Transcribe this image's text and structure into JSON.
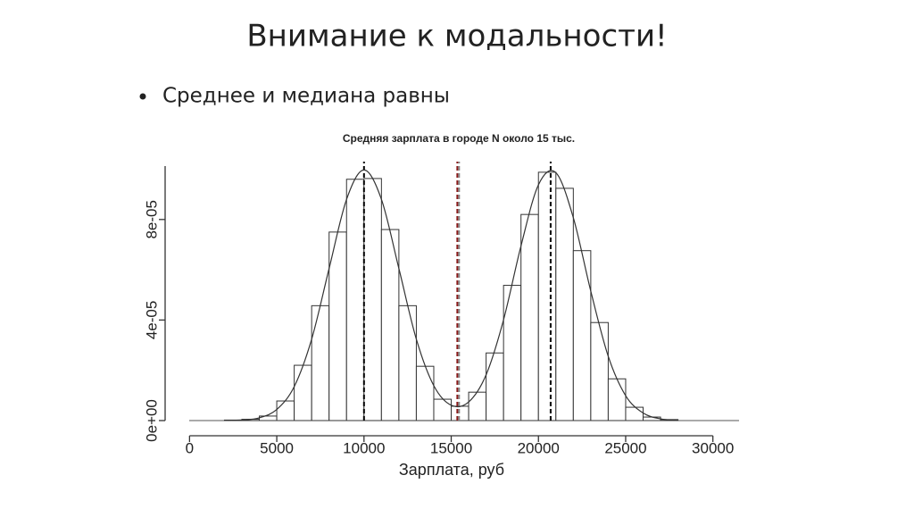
{
  "slide": {
    "title": "Внимание к модальности!",
    "bullets": [
      "Среднее и медиана равны"
    ]
  },
  "chart_data": {
    "type": "histogram",
    "title": "Средняя зарплата в городе N около 15 тыс.",
    "x_label": "Зарплата, руб",
    "bins": [
      2000,
      3000,
      4000,
      5000,
      6000,
      7000,
      8000,
      9000,
      10000,
      11000,
      12000,
      13000,
      14000,
      15000,
      16000,
      17000,
      18000,
      19000,
      20000,
      21000,
      22000,
      23000,
      24000,
      25000,
      26000,
      27000,
      28000
    ],
    "counts": [
      2e-07,
      5e-07,
      1.8e-06,
      7.8e-06,
      2.2e-05,
      4.57e-05,
      7.5e-05,
      9.6e-05,
      9.63e-05,
      7.6e-05,
      4.57e-05,
      2.16e-05,
      8.5e-06,
      5.7e-06,
      1.13e-05,
      2.69e-05,
      5.38e-05,
      8.2e-05,
      9.88e-05,
      9.24e-05,
      6.76e-05,
      3.9e-05,
      1.66e-05,
      5.3e-06,
      1.4e-06,
      4e-07
    ],
    "color": "#ffffff",
    "edge_color": "#333333",
    "density": {
      "x": [
        2000,
        3000,
        4000,
        5000,
        6000,
        7000,
        8000,
        9000,
        10000,
        11000,
        12000,
        13000,
        14000,
        15000,
        16000,
        17000,
        18000,
        19000,
        20000,
        21000,
        22000,
        23000,
        24000,
        25000,
        26000,
        27000,
        28000
      ],
      "values": [
        3e-08,
        2.2e-07,
        1.1e-06,
        4.4e-06,
        1.35e-05,
        3.24e-05,
        6.05e-05,
        8.8e-05,
        9.97e-05,
        8.8e-05,
        6.05e-05,
        3.24e-05,
        1.39e-05,
        6.1e-06,
        7.4e-06,
        1.82e-05,
        4.01e-05,
        6.95e-05,
        9.38e-05,
        9.86e-05,
        8.07e-05,
        5.15e-05,
        2.56e-05,
        9.9e-06,
        3e-06,
        7e-07,
        1e-07
      ],
      "color": "#333333"
    },
    "vlines": [
      {
        "x": 10000,
        "color": "#000000"
      },
      {
        "x": 20700,
        "color": "#000000"
      },
      {
        "x": 15350,
        "color": "#8b1a1a"
      },
      {
        "x": 15450,
        "color": "#888888"
      }
    ],
    "xlim": [
      -1400,
      31500
    ],
    "ylim": [
      0,
      0.0001
    ],
    "xticks": [
      0,
      5000,
      10000,
      15000,
      20000,
      25000,
      30000
    ],
    "yticks": [
      {
        "value": 0,
        "label": "0e+00"
      },
      {
        "value": 4e-05,
        "label": "4e-05"
      },
      {
        "value": 8e-05,
        "label": "8e-05"
      }
    ]
  }
}
